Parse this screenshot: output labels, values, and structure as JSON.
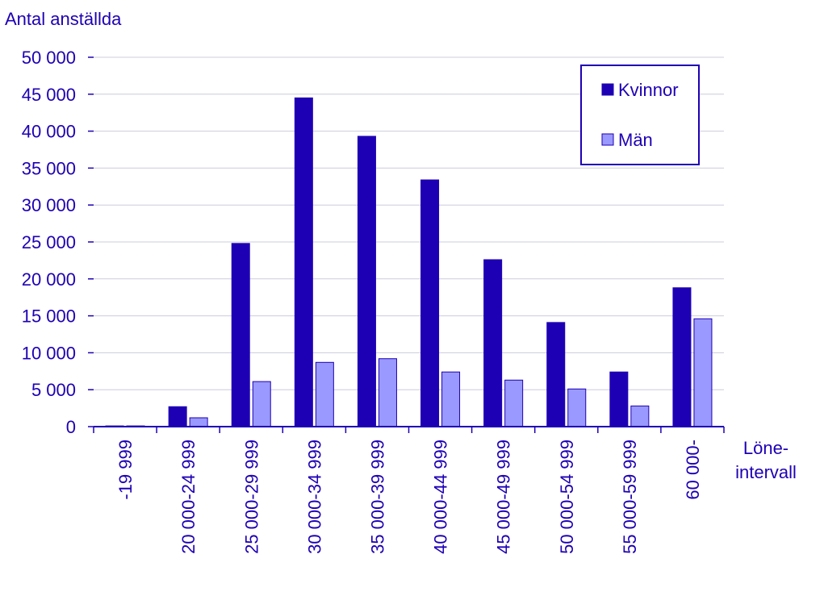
{
  "chart_data": {
    "type": "bar",
    "ylabel": "Antal anställda",
    "xlabel_lines": [
      "Löne-",
      "intervall"
    ],
    "categories": [
      "-19 999",
      "20 000-24 999",
      "25 000-29 999",
      "30 000-34 999",
      "35 000-39 999",
      "40 000-44 999",
      "45 000-49 999",
      "50 000-54 999",
      "55 000-59 999",
      "60 000-"
    ],
    "series": [
      {
        "name": "Kvinnor",
        "color": "#1e00b4",
        "values": [
          100,
          2700,
          24800,
          44500,
          39300,
          33400,
          22600,
          14100,
          7400,
          18800
        ]
      },
      {
        "name": "Män",
        "color": "#9999ff",
        "values": [
          100,
          1200,
          6100,
          8700,
          9200,
          7400,
          6300,
          5100,
          2800,
          14600
        ]
      }
    ],
    "ylim": [
      0,
      50000
    ],
    "yticks": [
      0,
      5000,
      10000,
      15000,
      20000,
      25000,
      30000,
      35000,
      40000,
      45000,
      50000
    ],
    "ytick_labels": [
      "0",
      "5 000",
      "10 000",
      "15 000",
      "20 000",
      "25 000",
      "30 000",
      "35 000",
      "40 000",
      "45 000",
      "50 000"
    ],
    "grid": true,
    "legend_position": "top-right"
  }
}
